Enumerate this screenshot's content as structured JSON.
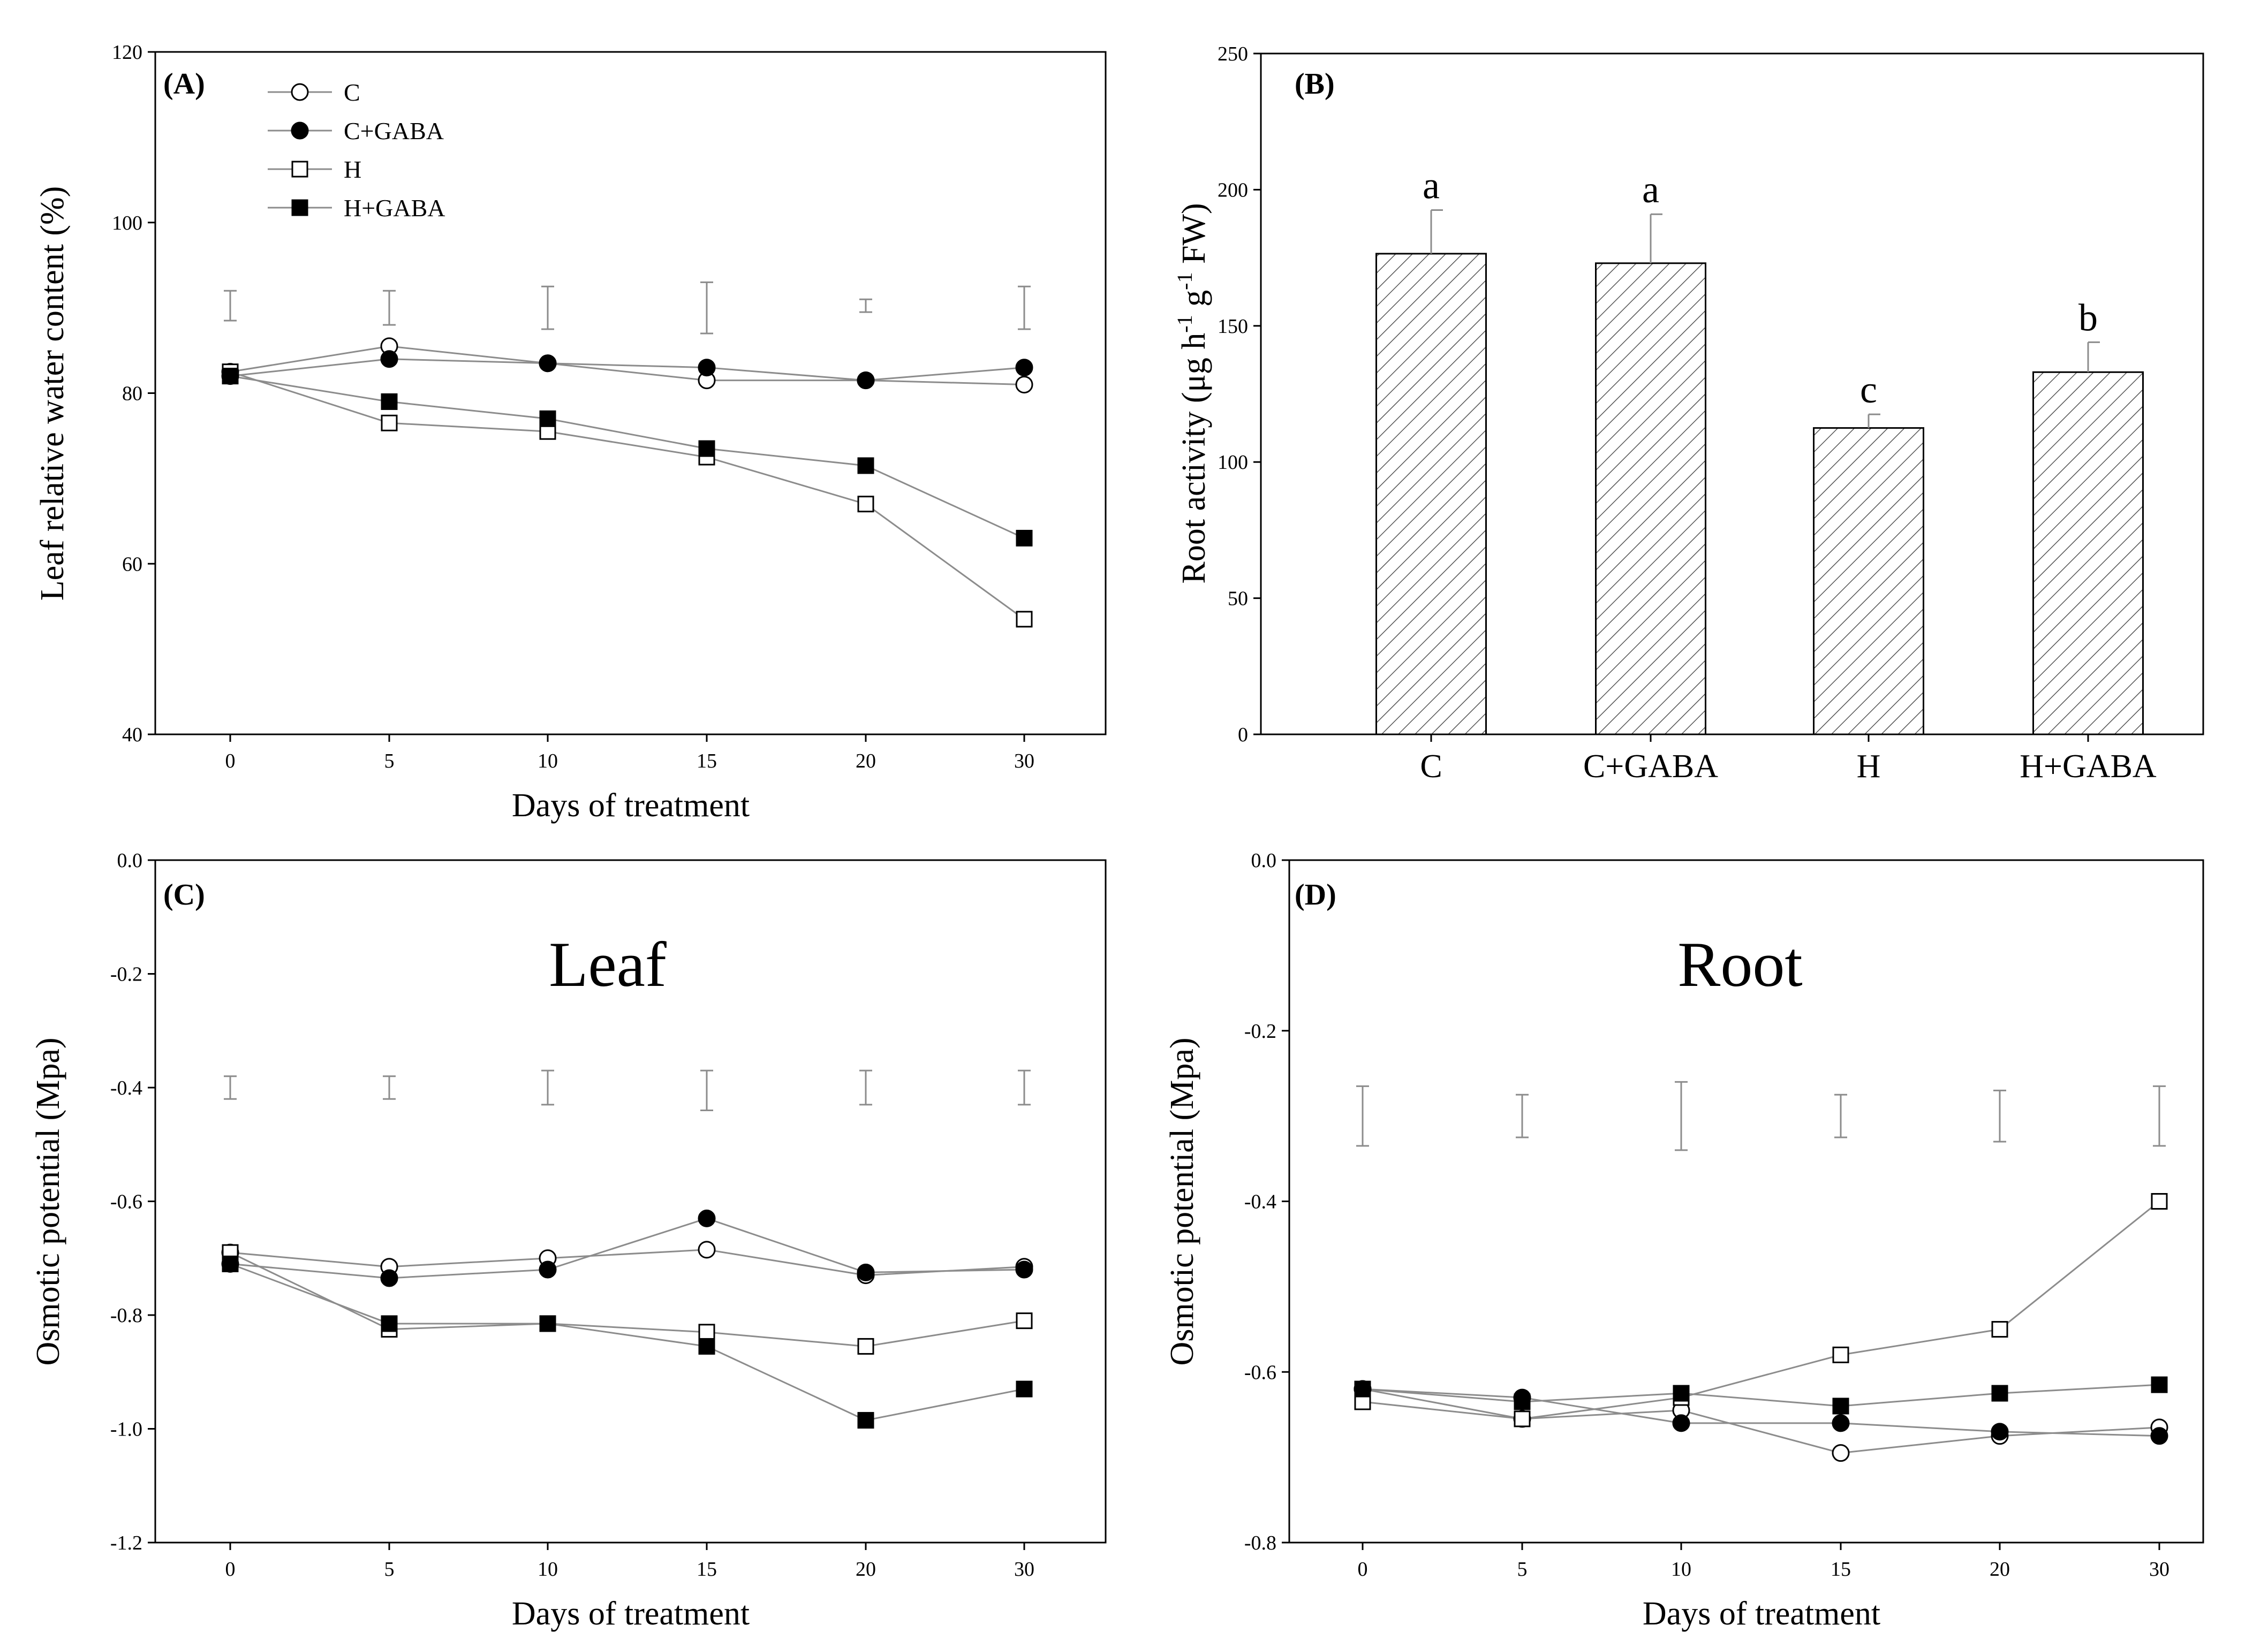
{
  "figure": {
    "series_styles": [
      {
        "name": "C",
        "marker": "circle",
        "fill": "open"
      },
      {
        "name": "C+GABA",
        "marker": "circle",
        "fill": "filled"
      },
      {
        "name": "H",
        "marker": "square",
        "fill": "open"
      },
      {
        "name": "H+GABA",
        "marker": "square",
        "fill": "filled"
      }
    ],
    "colors": {
      "line": "#8c8c8c",
      "marker_edge": "#000000",
      "error_bar": "#8c8c8c",
      "axis": "#000000"
    }
  },
  "chart_data": [
    {
      "panel": "(A)",
      "type": "line",
      "xlabel": "Days of treatment",
      "ylabel": "Leaf relative water content (%)",
      "x": [
        0,
        5,
        10,
        15,
        20,
        30
      ],
      "xticks": [
        "0",
        "5",
        "10",
        "15",
        "20",
        "30"
      ],
      "ylim": [
        40,
        120
      ],
      "yticks": [
        "40",
        "60",
        "80",
        "100",
        "120"
      ],
      "legend": [
        "C",
        "C+GABA",
        "H",
        "H+GABA"
      ],
      "series": [
        {
          "name": "C",
          "values": [
            82.5,
            85.5,
            83.5,
            81.5,
            81.5,
            81.0
          ]
        },
        {
          "name": "C+GABA",
          "values": [
            82.0,
            84.0,
            83.5,
            83.0,
            81.5,
            83.0
          ]
        },
        {
          "name": "H",
          "values": [
            82.5,
            76.5,
            75.5,
            72.5,
            67.0,
            53.5
          ]
        },
        {
          "name": "H+GABA",
          "values": [
            82.0,
            79.0,
            77.0,
            73.5,
            71.5,
            63.0
          ]
        }
      ],
      "error_bars": [
        {
          "low": 88.5,
          "high": 92.0
        },
        {
          "low": 88.0,
          "high": 92.0
        },
        {
          "low": 87.5,
          "high": 92.5
        },
        {
          "low": 87.0,
          "high": 93.0
        },
        {
          "low": 89.5,
          "high": 91.0
        },
        {
          "low": 87.5,
          "high": 92.5
        }
      ]
    },
    {
      "panel": "(B)",
      "type": "bar",
      "xlabel": "",
      "ylabel": "Root activity (μg h⁻¹ g⁻¹ FW)",
      "ylabel_parts": [
        "Root activity (μg h",
        "-1",
        " g",
        "-1",
        " FW)"
      ],
      "categories": [
        "C",
        "C+GABA",
        "H",
        "H+GABA"
      ],
      "values": [
        176.5,
        173.0,
        112.5,
        133.0
      ],
      "errors": [
        16.0,
        18.0,
        5.0,
        11.0
      ],
      "significance": [
        "a",
        "a",
        "c",
        "b"
      ],
      "ylim": [
        0,
        250
      ],
      "yticks": [
        "0",
        "50",
        "100",
        "150",
        "200",
        "250"
      ]
    },
    {
      "panel": "(C)",
      "type": "line",
      "label": "Leaf",
      "xlabel": "Days of treatment",
      "ylabel": "Osmotic potential (Mpa)",
      "x": [
        0,
        5,
        10,
        15,
        20,
        30
      ],
      "xticks": [
        "0",
        "5",
        "10",
        "15",
        "20",
        "30"
      ],
      "ylim": [
        -1.2,
        0.0
      ],
      "yticks": [
        "-1.2",
        "-1.0",
        "-0.8",
        "-0.6",
        "-0.4",
        "-0.2",
        "0.0"
      ],
      "series": [
        {
          "name": "C",
          "values": [
            -0.69,
            -0.715,
            -0.7,
            -0.685,
            -0.73,
            -0.715
          ]
        },
        {
          "name": "C+GABA",
          "values": [
            -0.71,
            -0.735,
            -0.72,
            -0.63,
            -0.725,
            -0.72
          ]
        },
        {
          "name": "H",
          "values": [
            -0.69,
            -0.825,
            -0.815,
            -0.83,
            -0.855,
            -0.81
          ]
        },
        {
          "name": "H+GABA",
          "values": [
            -0.71,
            -0.815,
            -0.815,
            -0.855,
            -0.985,
            -0.93
          ]
        }
      ],
      "error_bars": [
        {
          "low": -0.42,
          "high": -0.38
        },
        {
          "low": -0.42,
          "high": -0.38
        },
        {
          "low": -0.43,
          "high": -0.37
        },
        {
          "low": -0.44,
          "high": -0.37
        },
        {
          "low": -0.43,
          "high": -0.37
        },
        {
          "low": -0.43,
          "high": -0.37
        }
      ]
    },
    {
      "panel": "(D)",
      "type": "line",
      "label": "Root",
      "xlabel": "Days of treatment",
      "ylabel": "Osmotic potential (Mpa)",
      "x": [
        0,
        5,
        10,
        15,
        20,
        30
      ],
      "xticks": [
        "0",
        "5",
        "10",
        "15",
        "20",
        "30"
      ],
      "ylim": [
        -0.8,
        0.0
      ],
      "yticks": [
        "-0.8",
        "-0.6",
        "-0.4",
        "-0.2",
        "0.0"
      ],
      "series": [
        {
          "name": "C",
          "values": [
            -0.62,
            -0.655,
            -0.645,
            -0.695,
            -0.675,
            -0.665
          ]
        },
        {
          "name": "C+GABA",
          "values": [
            -0.62,
            -0.63,
            -0.66,
            -0.66,
            -0.67,
            -0.675
          ]
        },
        {
          "name": "H",
          "values": [
            -0.635,
            -0.655,
            -0.63,
            -0.58,
            -0.55,
            -0.4
          ]
        },
        {
          "name": "H+GABA",
          "values": [
            -0.62,
            -0.635,
            -0.625,
            -0.64,
            -0.625,
            -0.615
          ]
        }
      ],
      "error_bars": [
        {
          "low": -0.335,
          "high": -0.265
        },
        {
          "low": -0.325,
          "high": -0.275
        },
        {
          "low": -0.34,
          "high": -0.26
        },
        {
          "low": -0.325,
          "high": -0.275
        },
        {
          "low": -0.33,
          "high": -0.27
        },
        {
          "low": -0.335,
          "high": -0.265
        }
      ]
    }
  ]
}
